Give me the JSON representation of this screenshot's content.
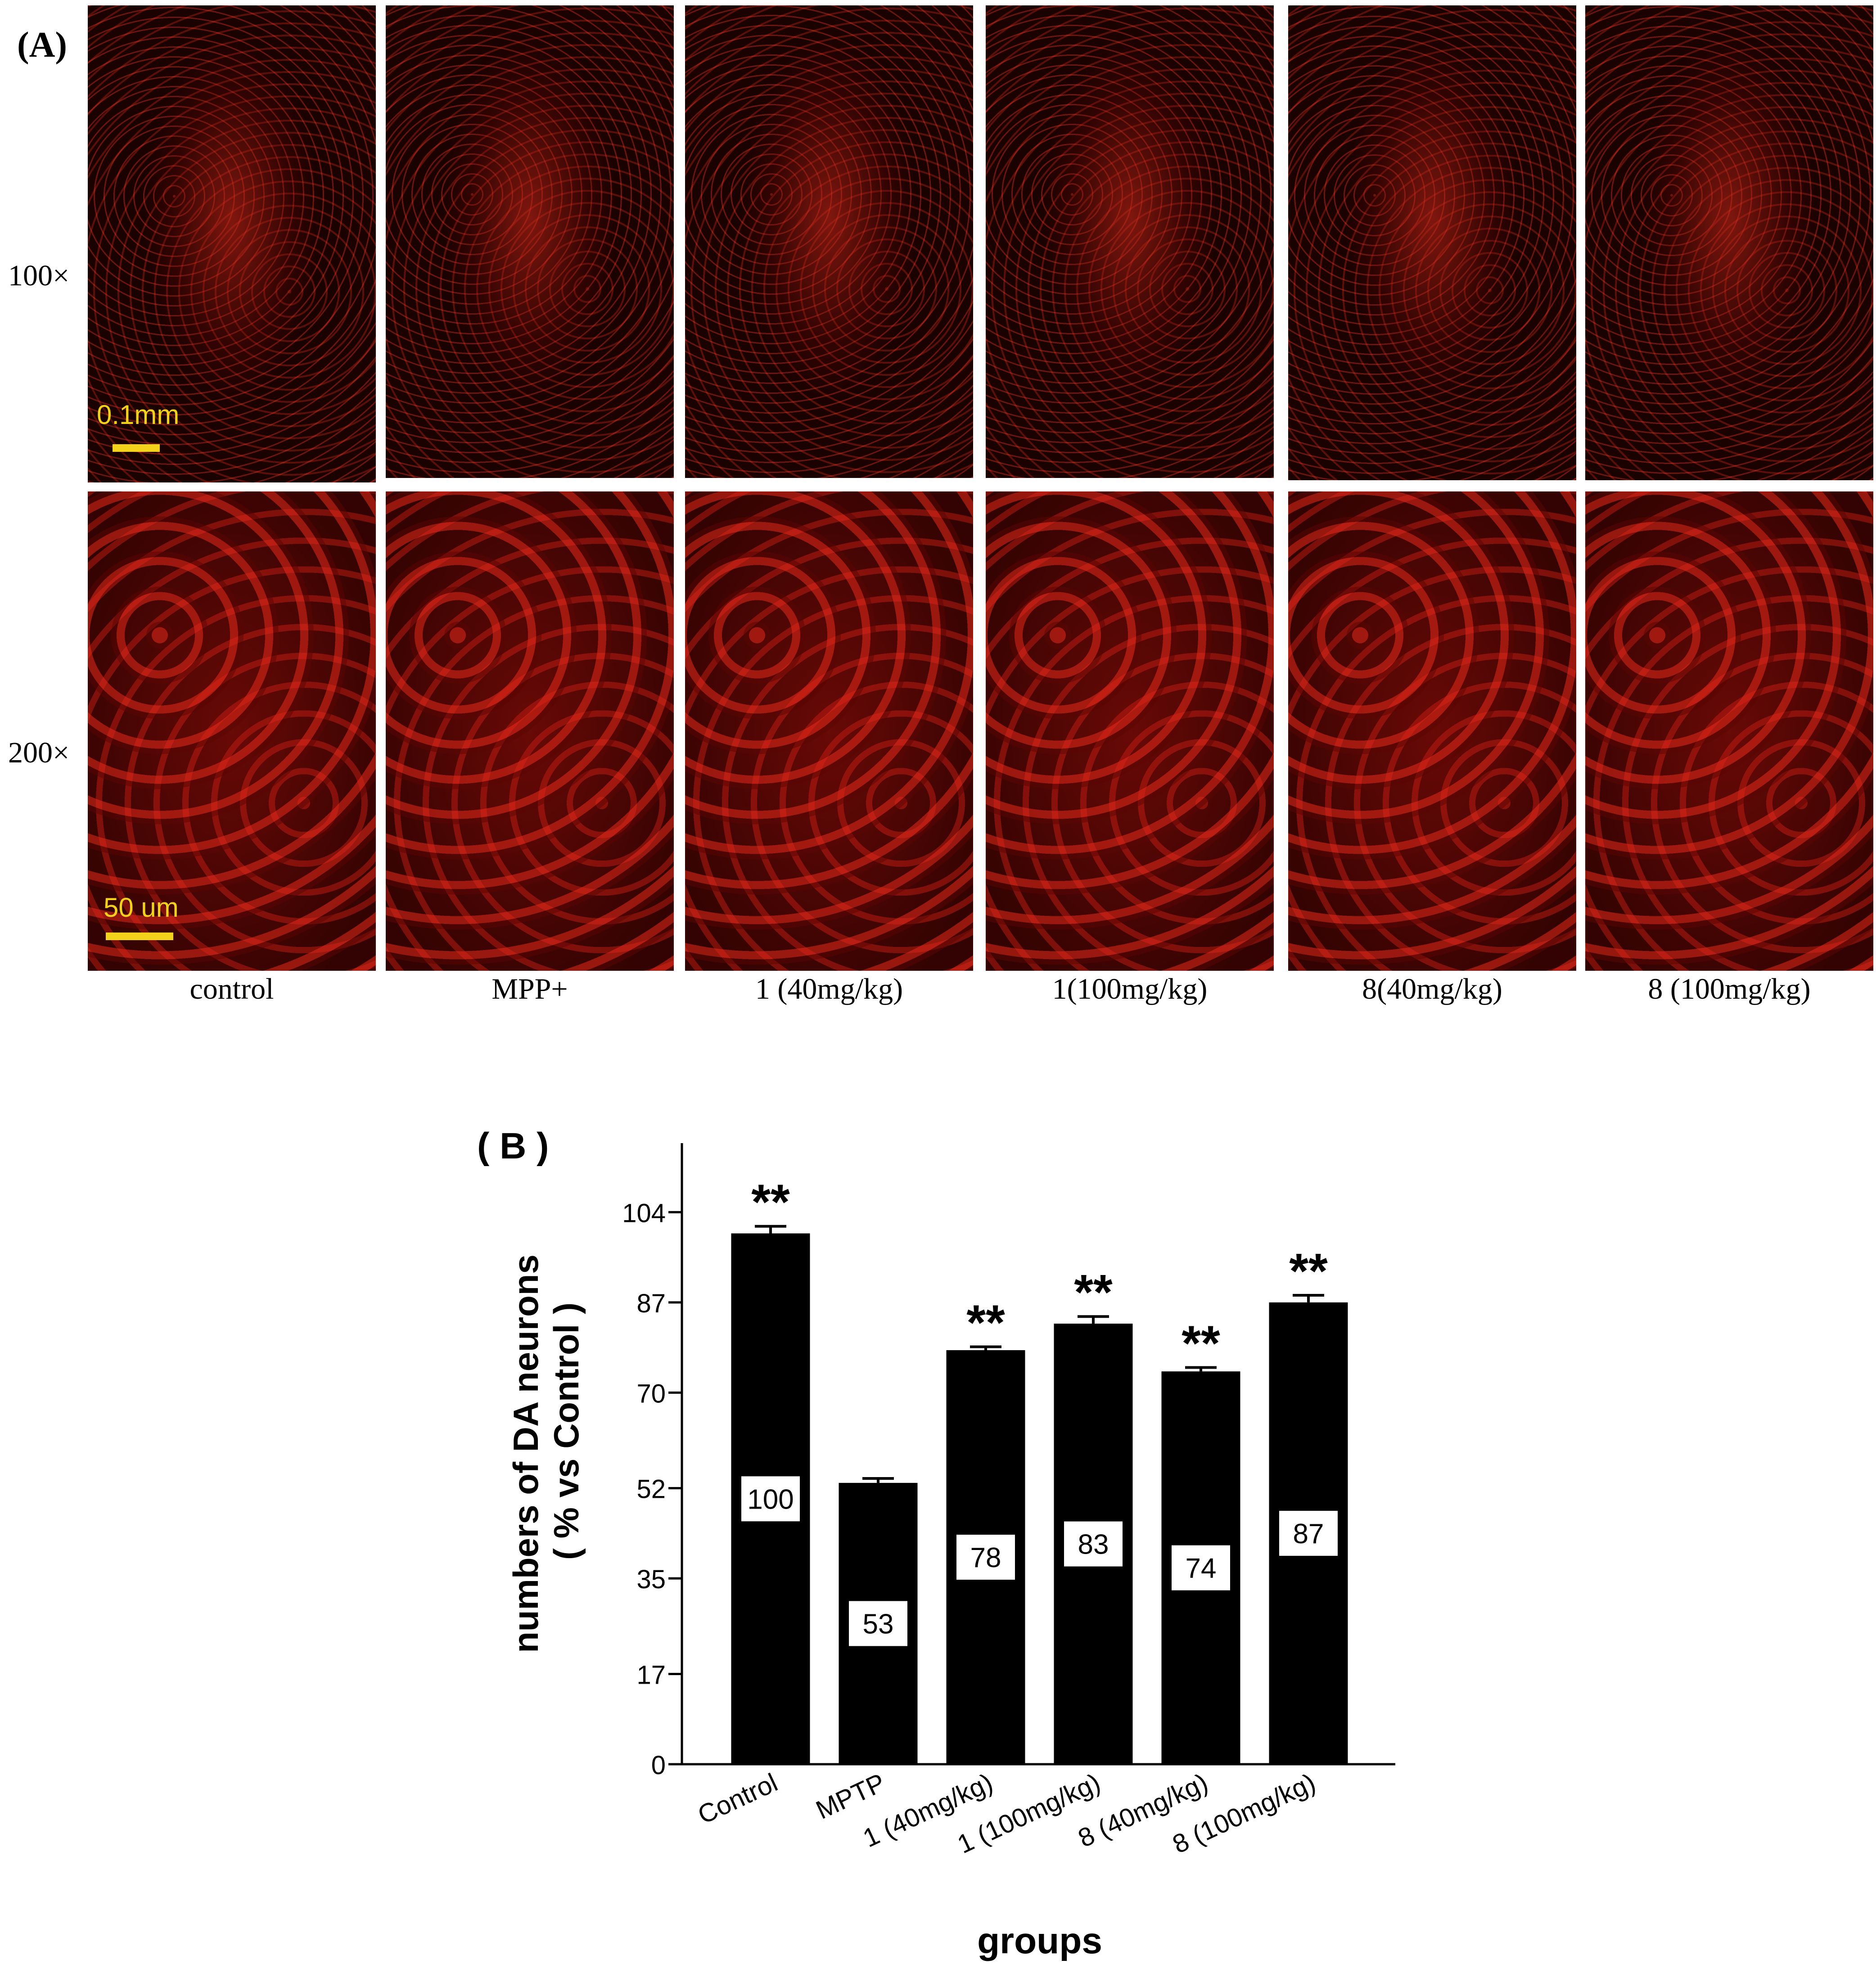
{
  "panel_a": {
    "label": "(A)",
    "row_labels": [
      "100×",
      "200×"
    ],
    "column_labels": [
      "control",
      "MPP+",
      "1 (40mg/kg)",
      "1(100mg/kg)",
      "8(40mg/kg)",
      "8 (100mg/kg)"
    ],
    "scale_bars": {
      "row1": "0.1mm",
      "row2": "50 um"
    },
    "colors": {
      "stain": "#c8160e",
      "scale_bar": "#f2d21a"
    }
  },
  "panel_b": {
    "label": "( B )"
  },
  "chart_data": {
    "type": "bar",
    "title": "",
    "xlabel": "groups",
    "ylabel": "numbers of DA neurons",
    "ylabel_line2": "( % vs Control )",
    "categories": [
      "Control",
      "MPTP",
      "1 (40mg/kg)",
      "1 (100mg/kg)",
      "8 (40mg/kg)",
      "8 (100mg/kg)"
    ],
    "values": [
      100,
      53,
      78,
      83,
      74,
      87
    ],
    "value_labels": [
      "100",
      "53",
      "78",
      "83",
      "74",
      "87"
    ],
    "error_plus": [
      1.0,
      0.5,
      0.3,
      1.0,
      0.4,
      1.0
    ],
    "significance": [
      "**",
      "",
      "**",
      "**",
      "**",
      "**"
    ],
    "yticks": [
      0,
      17,
      35,
      52,
      70,
      87,
      104
    ],
    "ytick_labels": [
      "0",
      "17",
      "35",
      "52",
      "70",
      "87",
      "104"
    ],
    "ylim": [
      0,
      117
    ],
    "bar_color": "#000000",
    "grid": false,
    "legend": "none"
  }
}
